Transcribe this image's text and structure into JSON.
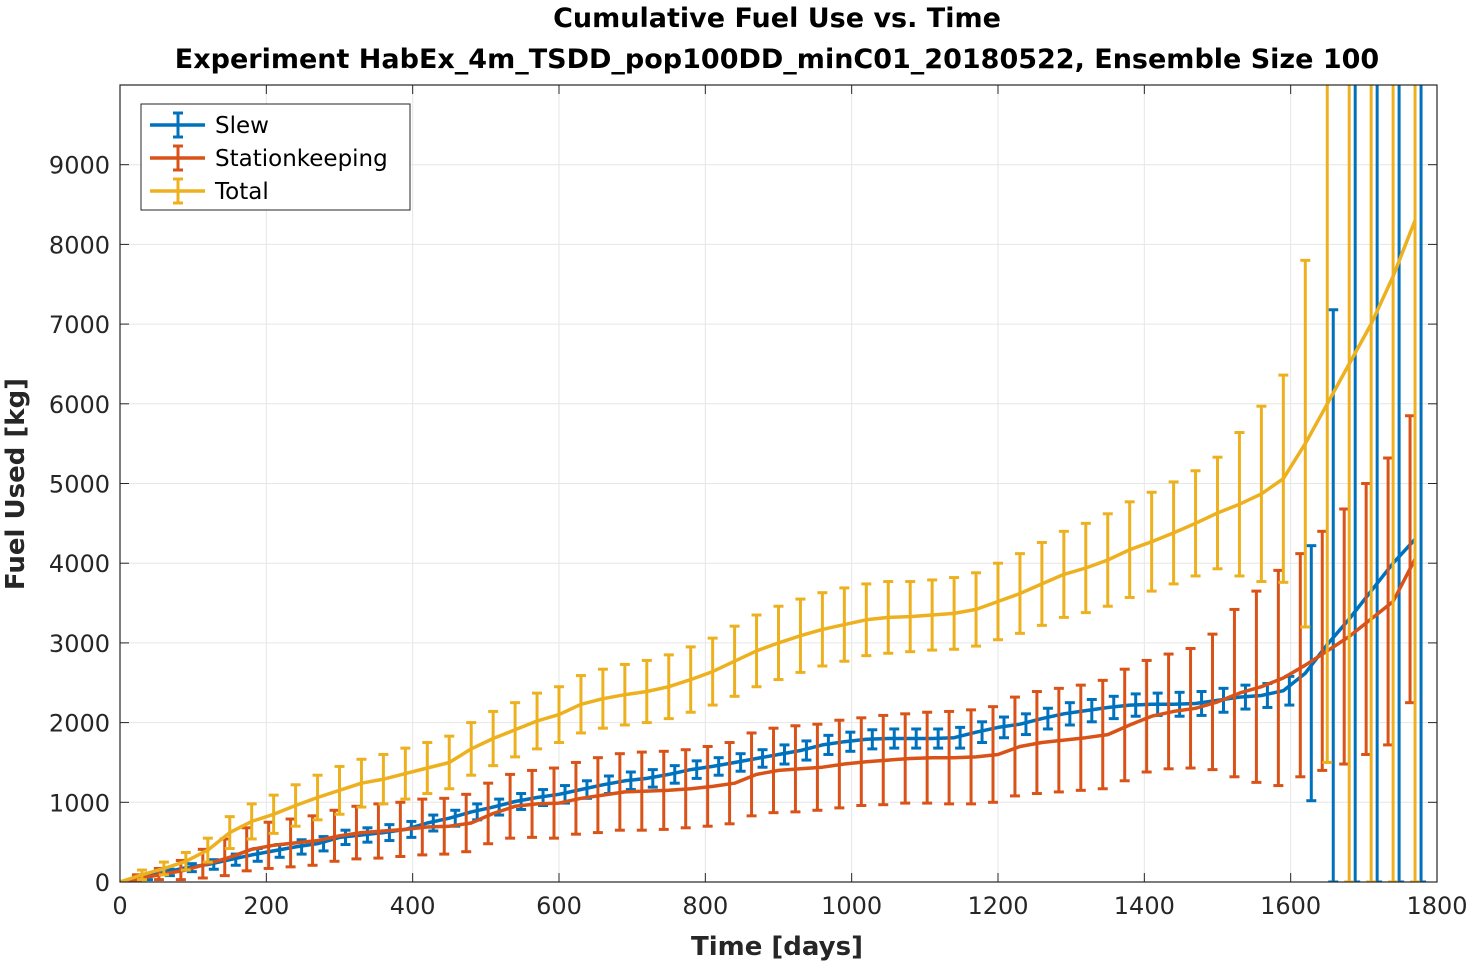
{
  "chart_data": {
    "type": "line",
    "title": "Cumulative Fuel Use vs. Time",
    "subtitle": "Experiment HabEx_4m_TSDD_pop100DD_minC01_20180522, Ensemble Size 100",
    "xlabel": "Time [days]",
    "ylabel": "Fuel Used [kg]",
    "xlim": [
      0,
      1800
    ],
    "ylim": [
      0,
      10000
    ],
    "xticks": [
      0,
      200,
      400,
      600,
      800,
      1000,
      1200,
      1400,
      1600,
      1800
    ],
    "yticks": [
      0,
      1000,
      2000,
      3000,
      4000,
      5000,
      6000,
      7000,
      8000,
      9000
    ],
    "xtick_labels": [
      "0",
      "200",
      "400",
      "600",
      "800",
      "1000",
      "1200",
      "1400",
      "1600",
      "1800"
    ],
    "ytick_labels": [
      "0",
      "1000",
      "2000",
      "3000",
      "4000",
      "5000",
      "6000",
      "7000",
      "8000",
      "9000"
    ],
    "grid": true,
    "legend_position": "top-left",
    "error_bars": true,
    "series": [
      {
        "name": "Slew",
        "color": "#0072BD",
        "points": [
          [
            0,
            0,
            0
          ],
          [
            30,
            60,
            30
          ],
          [
            60,
            120,
            40
          ],
          [
            90,
            180,
            50
          ],
          [
            120,
            220,
            60
          ],
          [
            150,
            280,
            70
          ],
          [
            180,
            340,
            80
          ],
          [
            210,
            390,
            80
          ],
          [
            240,
            440,
            90
          ],
          [
            270,
            480,
            90
          ],
          [
            300,
            560,
            90
          ],
          [
            330,
            590,
            90
          ],
          [
            360,
            620,
            100
          ],
          [
            390,
            660,
            100
          ],
          [
            420,
            740,
            100
          ],
          [
            450,
            800,
            100
          ],
          [
            480,
            880,
            100
          ],
          [
            510,
            940,
            100
          ],
          [
            540,
            1010,
            100
          ],
          [
            570,
            1060,
            100
          ],
          [
            600,
            1100,
            110
          ],
          [
            630,
            1160,
            110
          ],
          [
            660,
            1220,
            110
          ],
          [
            690,
            1270,
            110
          ],
          [
            720,
            1300,
            110
          ],
          [
            750,
            1350,
            110
          ],
          [
            780,
            1410,
            110
          ],
          [
            810,
            1450,
            110
          ],
          [
            840,
            1500,
            110
          ],
          [
            870,
            1550,
            110
          ],
          [
            900,
            1600,
            120
          ],
          [
            930,
            1650,
            120
          ],
          [
            960,
            1720,
            120
          ],
          [
            990,
            1760,
            120
          ],
          [
            1020,
            1790,
            120
          ],
          [
            1050,
            1800,
            120
          ],
          [
            1080,
            1800,
            120
          ],
          [
            1110,
            1800,
            120
          ],
          [
            1140,
            1810,
            130
          ],
          [
            1170,
            1880,
            130
          ],
          [
            1200,
            1940,
            130
          ],
          [
            1230,
            1980,
            130
          ],
          [
            1260,
            2050,
            130
          ],
          [
            1290,
            2110,
            140
          ],
          [
            1320,
            2150,
            140
          ],
          [
            1350,
            2190,
            140
          ],
          [
            1380,
            2220,
            140
          ],
          [
            1410,
            2230,
            140
          ],
          [
            1440,
            2230,
            150
          ],
          [
            1470,
            2240,
            150
          ],
          [
            1500,
            2280,
            150
          ],
          [
            1530,
            2320,
            150
          ],
          [
            1560,
            2340,
            150
          ],
          [
            1590,
            2400,
            180
          ],
          [
            1620,
            2620,
            1600
          ],
          [
            1650,
            2980,
            4200
          ],
          [
            1680,
            3300,
            8000
          ],
          [
            1710,
            3650,
            10000
          ],
          [
            1740,
            4000,
            10000
          ],
          [
            1770,
            4300,
            10000
          ]
        ]
      },
      {
        "name": "Stationkeeping",
        "color": "#D95319",
        "points": [
          [
            0,
            0,
            0
          ],
          [
            30,
            50,
            40
          ],
          [
            60,
            100,
            70
          ],
          [
            90,
            150,
            120
          ],
          [
            120,
            230,
            180
          ],
          [
            150,
            310,
            230
          ],
          [
            180,
            410,
            270
          ],
          [
            210,
            460,
            290
          ],
          [
            240,
            490,
            300
          ],
          [
            270,
            520,
            310
          ],
          [
            300,
            580,
            320
          ],
          [
            330,
            620,
            330
          ],
          [
            360,
            640,
            340
          ],
          [
            390,
            660,
            340
          ],
          [
            420,
            690,
            350
          ],
          [
            450,
            700,
            350
          ],
          [
            480,
            740,
            360
          ],
          [
            510,
            860,
            380
          ],
          [
            540,
            950,
            400
          ],
          [
            570,
            980,
            420
          ],
          [
            600,
            990,
            440
          ],
          [
            630,
            1050,
            450
          ],
          [
            660,
            1090,
            470
          ],
          [
            690,
            1130,
            480
          ],
          [
            720,
            1140,
            490
          ],
          [
            750,
            1150,
            490
          ],
          [
            780,
            1170,
            490
          ],
          [
            810,
            1200,
            500
          ],
          [
            840,
            1240,
            510
          ],
          [
            870,
            1350,
            520
          ],
          [
            900,
            1400,
            530
          ],
          [
            930,
            1420,
            540
          ],
          [
            960,
            1440,
            540
          ],
          [
            990,
            1480,
            550
          ],
          [
            1020,
            1510,
            550
          ],
          [
            1050,
            1530,
            560
          ],
          [
            1080,
            1550,
            560
          ],
          [
            1110,
            1560,
            570
          ],
          [
            1140,
            1560,
            580
          ],
          [
            1170,
            1570,
            590
          ],
          [
            1200,
            1600,
            600
          ],
          [
            1230,
            1700,
            620
          ],
          [
            1260,
            1750,
            640
          ],
          [
            1290,
            1780,
            650
          ],
          [
            1320,
            1810,
            660
          ],
          [
            1350,
            1850,
            680
          ],
          [
            1380,
            1970,
            700
          ],
          [
            1410,
            2080,
            700
          ],
          [
            1440,
            2140,
            720
          ],
          [
            1470,
            2180,
            750
          ],
          [
            1500,
            2260,
            850
          ],
          [
            1530,
            2370,
            1050
          ],
          [
            1560,
            2450,
            1200
          ],
          [
            1590,
            2560,
            1350
          ],
          [
            1620,
            2720,
            1400
          ],
          [
            1650,
            2900,
            1500
          ],
          [
            1680,
            3080,
            1600
          ],
          [
            1710,
            3300,
            1700
          ],
          [
            1740,
            3520,
            1800
          ],
          [
            1770,
            4050,
            1800
          ]
        ]
      },
      {
        "name": "Total",
        "color": "#EDB120",
        "points": [
          [
            0,
            0,
            0
          ],
          [
            30,
            90,
            60
          ],
          [
            60,
            170,
            80
          ],
          [
            90,
            260,
            110
          ],
          [
            120,
            400,
            150
          ],
          [
            150,
            620,
            200
          ],
          [
            180,
            760,
            220
          ],
          [
            210,
            850,
            240
          ],
          [
            240,
            960,
            260
          ],
          [
            270,
            1060,
            280
          ],
          [
            300,
            1150,
            300
          ],
          [
            330,
            1240,
            300
          ],
          [
            360,
            1290,
            310
          ],
          [
            390,
            1360,
            320
          ],
          [
            420,
            1430,
            320
          ],
          [
            450,
            1500,
            330
          ],
          [
            480,
            1670,
            330
          ],
          [
            510,
            1800,
            340
          ],
          [
            540,
            1910,
            340
          ],
          [
            570,
            2020,
            350
          ],
          [
            600,
            2100,
            350
          ],
          [
            630,
            2230,
            360
          ],
          [
            660,
            2300,
            370
          ],
          [
            690,
            2350,
            380
          ],
          [
            720,
            2390,
            390
          ],
          [
            750,
            2450,
            400
          ],
          [
            780,
            2540,
            410
          ],
          [
            810,
            2640,
            420
          ],
          [
            840,
            2770,
            440
          ],
          [
            870,
            2900,
            450
          ],
          [
            900,
            3000,
            460
          ],
          [
            930,
            3090,
            460
          ],
          [
            960,
            3170,
            460
          ],
          [
            990,
            3230,
            460
          ],
          [
            1020,
            3290,
            450
          ],
          [
            1050,
            3320,
            450
          ],
          [
            1080,
            3330,
            440
          ],
          [
            1110,
            3350,
            440
          ],
          [
            1140,
            3370,
            450
          ],
          [
            1170,
            3420,
            460
          ],
          [
            1200,
            3520,
            480
          ],
          [
            1230,
            3620,
            500
          ],
          [
            1260,
            3740,
            520
          ],
          [
            1290,
            3860,
            540
          ],
          [
            1320,
            3940,
            560
          ],
          [
            1350,
            4040,
            580
          ],
          [
            1380,
            4170,
            600
          ],
          [
            1410,
            4270,
            620
          ],
          [
            1440,
            4380,
            640
          ],
          [
            1470,
            4500,
            660
          ],
          [
            1500,
            4630,
            700
          ],
          [
            1530,
            4740,
            900
          ],
          [
            1560,
            4870,
            1100
          ],
          [
            1590,
            5060,
            1300
          ],
          [
            1620,
            5500,
            2300
          ],
          [
            1650,
            6000,
            4500
          ],
          [
            1680,
            6500,
            7000
          ],
          [
            1710,
            7000,
            10000
          ],
          [
            1740,
            7600,
            10000
          ],
          [
            1770,
            8300,
            10000
          ]
        ]
      }
    ]
  }
}
